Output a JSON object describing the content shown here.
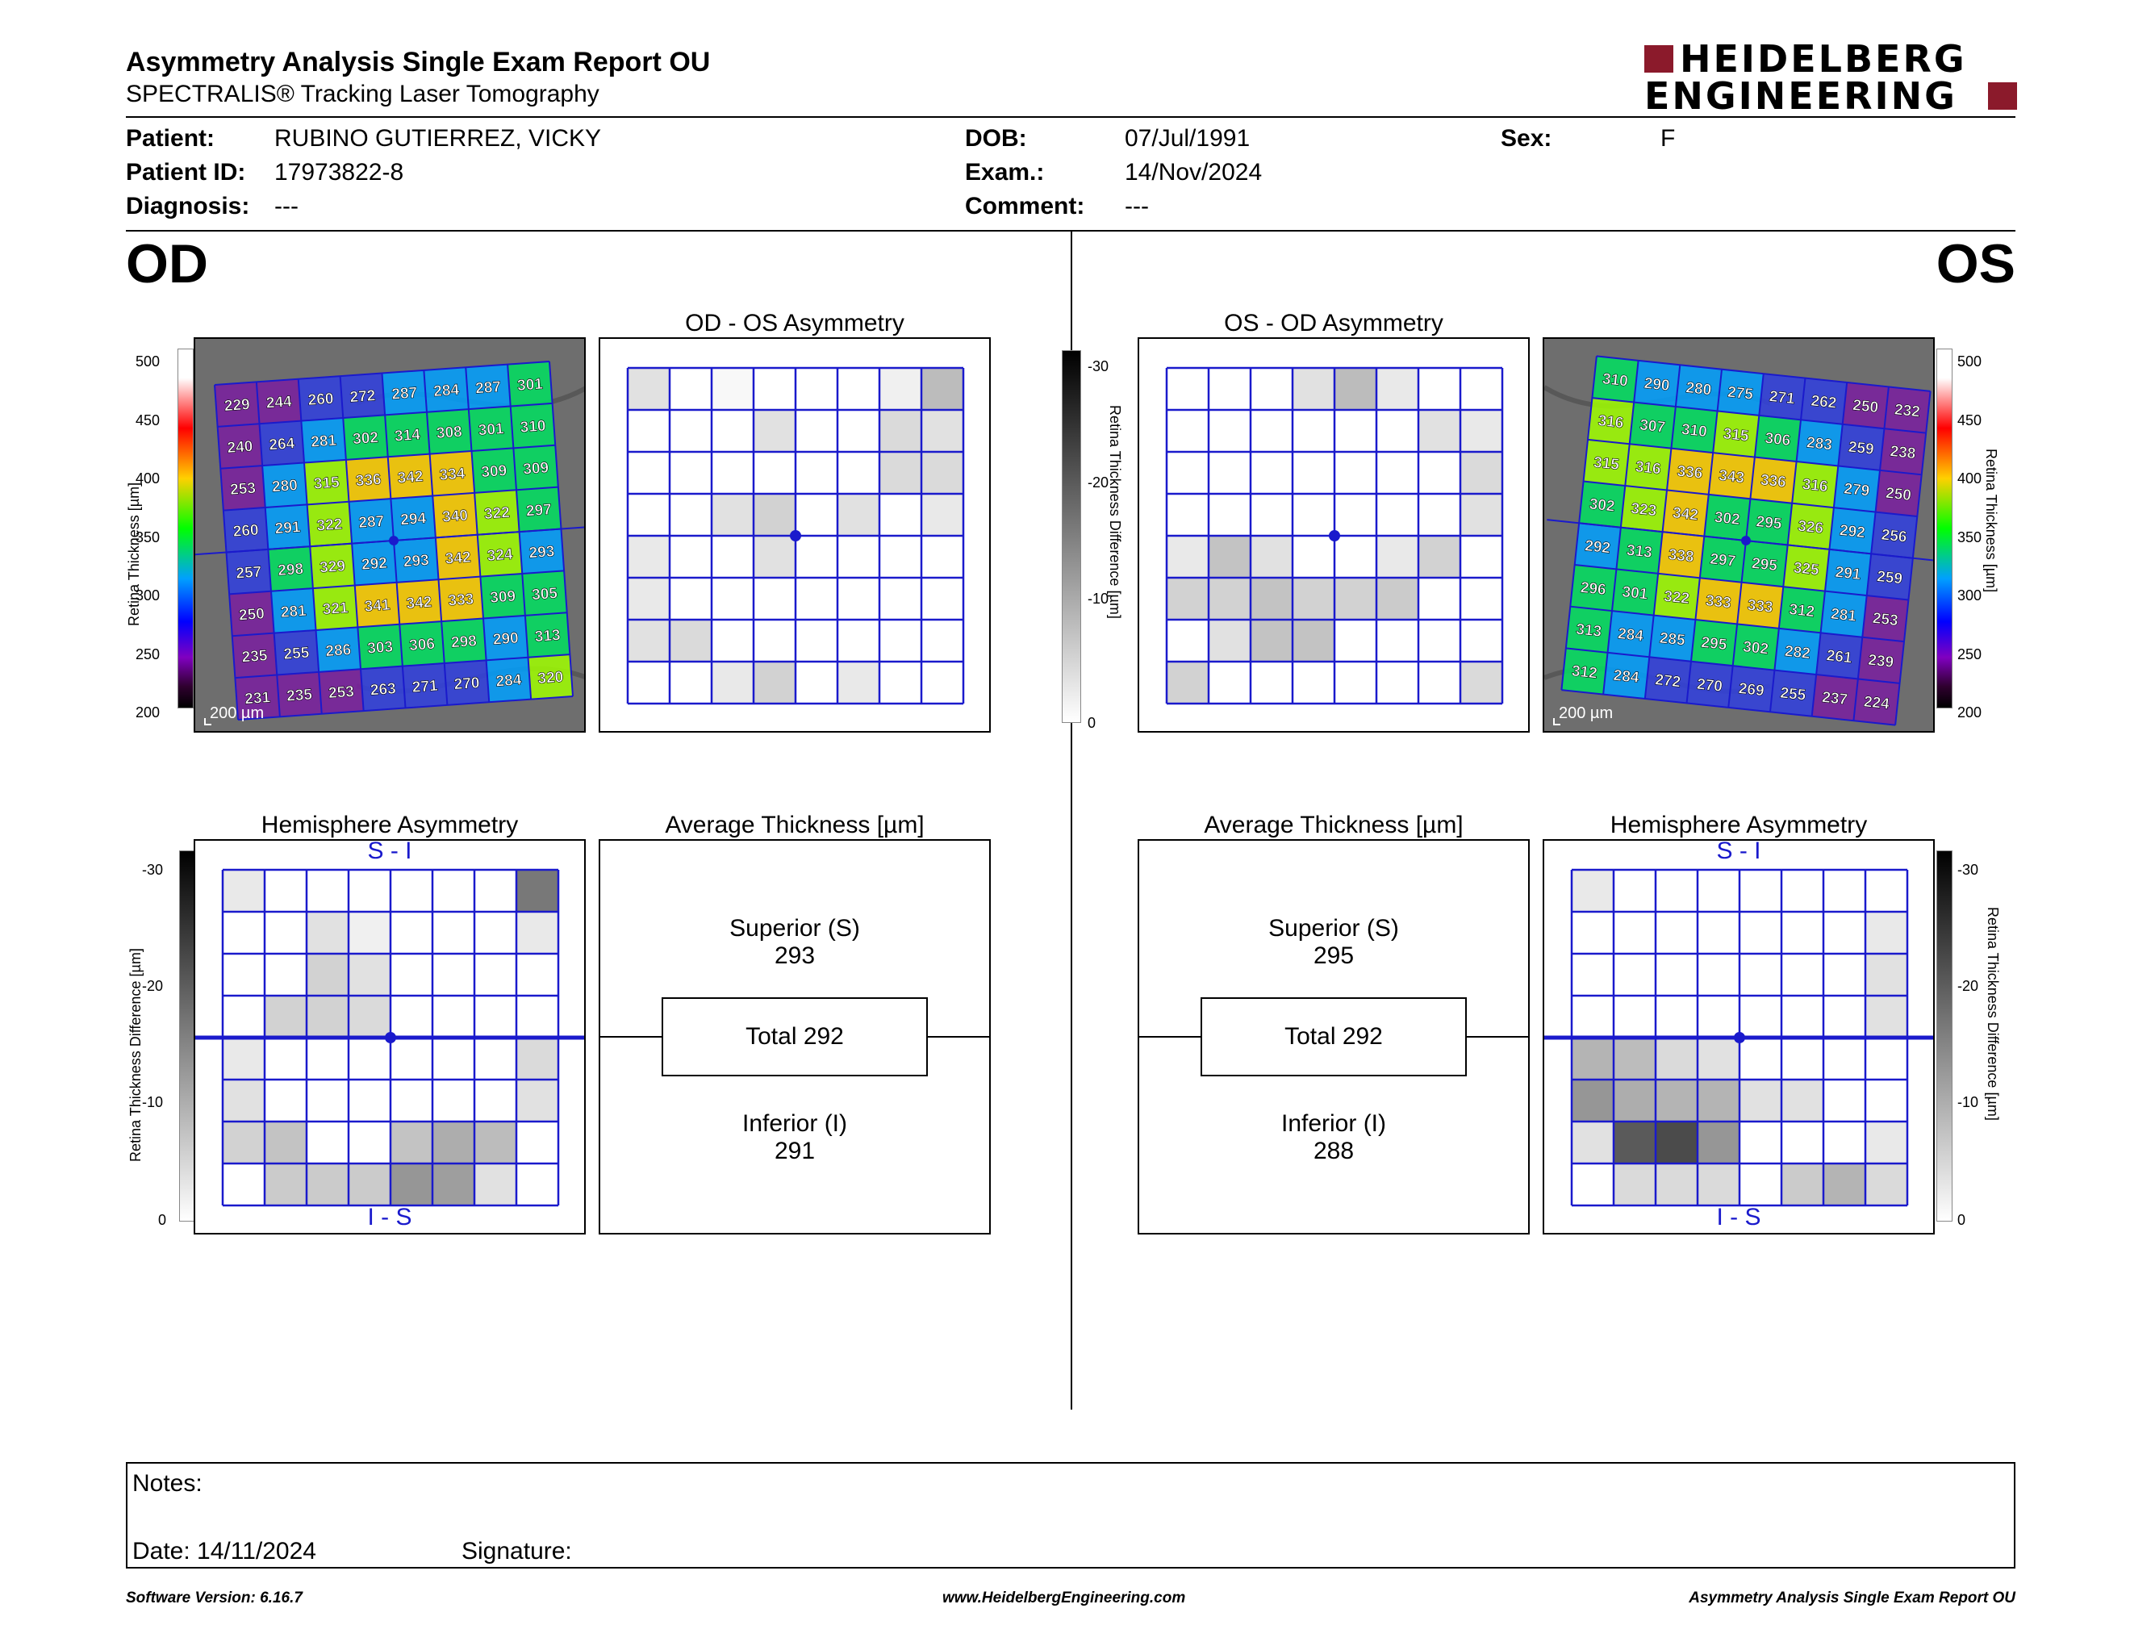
{
  "header": {
    "title": "Asymmetry Analysis Single Exam Report OU",
    "subtitle": "SPECTRALIS® Tracking Laser Tomography",
    "logo_line1": "HEIDELBERG",
    "logo_line2": "ENGINEERING",
    "brand_color": "#8b1a2b"
  },
  "patient": {
    "patient_label": "Patient:",
    "patient_value": "RUBINO GUTIERREZ, VICKY",
    "id_label": "Patient ID:",
    "id_value": "17973822-8",
    "diagnosis_label": "Diagnosis:",
    "diagnosis_value": "---",
    "dob_label": "DOB:",
    "dob_value": "07/Jul/1991",
    "exam_label": "Exam.:",
    "exam_value": "14/Nov/2024",
    "comment_label": "Comment:",
    "comment_value": "---",
    "sex_label": "Sex:",
    "sex_value": "F"
  },
  "od": {
    "eye_label": "OD",
    "asym_title": "OD - OS Asymmetry",
    "hemi_title": "Hemisphere Asymmetry",
    "avg_title": "Average Thickness [µm]",
    "hemi_top": "S - I",
    "hemi_bottom": "I - S",
    "scale_text": "200 µm",
    "superior_label": "Superior (S)",
    "superior_value": "293",
    "total_label": "Total 292",
    "inferior_label": "Inferior (I)",
    "inferior_value": "291",
    "thickness": [
      [
        229,
        244,
        260,
        272,
        287,
        284,
        287,
        301
      ],
      [
        240,
        264,
        281,
        302,
        314,
        308,
        301,
        310
      ],
      [
        253,
        280,
        315,
        336,
        342,
        334,
        309,
        309
      ],
      [
        260,
        291,
        322,
        287,
        294,
        340,
        322,
        297
      ],
      [
        257,
        298,
        329,
        292,
        293,
        342,
        324,
        293
      ],
      [
        250,
        281,
        321,
        341,
        342,
        333,
        309,
        305
      ],
      [
        235,
        255,
        286,
        303,
        306,
        298,
        290,
        313
      ],
      [
        231,
        235,
        253,
        263,
        271,
        270,
        284,
        320
      ]
    ],
    "asym_grid": [
      [
        4,
        0,
        1,
        0,
        0,
        0,
        2,
        9
      ],
      [
        0,
        0,
        0,
        4,
        0,
        0,
        5,
        4
      ],
      [
        0,
        0,
        0,
        0,
        0,
        0,
        5,
        5
      ],
      [
        0,
        0,
        4,
        6,
        0,
        4,
        0,
        3
      ],
      [
        3,
        0,
        0,
        4,
        0,
        0,
        0,
        0
      ],
      [
        3,
        0,
        0,
        0,
        0,
        0,
        0,
        0
      ],
      [
        4,
        5,
        0,
        0,
        0,
        0,
        0,
        0
      ],
      [
        0,
        0,
        3,
        6,
        0,
        3,
        0,
        0
      ]
    ],
    "hemi_grid": [
      [
        3,
        0,
        0,
        0,
        0,
        0,
        0,
        18
      ],
      [
        0,
        0,
        4,
        2,
        0,
        0,
        0,
        3
      ],
      [
        0,
        0,
        6,
        4,
        0,
        0,
        0,
        0
      ],
      [
        0,
        6,
        6,
        5,
        0,
        0,
        0,
        0
      ],
      [
        3,
        0,
        0,
        0,
        0,
        0,
        0,
        5
      ],
      [
        4,
        0,
        0,
        0,
        0,
        0,
        0,
        4
      ],
      [
        6,
        8,
        0,
        0,
        8,
        11,
        9,
        0
      ],
      [
        0,
        7,
        7,
        7,
        14,
        13,
        4,
        0
      ]
    ]
  },
  "os": {
    "eye_label": "OS",
    "asym_title": "OS - OD Asymmetry",
    "hemi_title": "Hemisphere Asymmetry",
    "avg_title": "Average Thickness [µm]",
    "hemi_top": "S - I",
    "hemi_bottom": "I - S",
    "scale_text": "200 µm",
    "superior_label": "Superior (S)",
    "superior_value": "295",
    "total_label": "Total 292",
    "inferior_label": "Inferior (I)",
    "inferior_value": "288",
    "thickness": [
      [
        310,
        290,
        280,
        275,
        271,
        262,
        250,
        232
      ],
      [
        316,
        307,
        310,
        315,
        306,
        283,
        259,
        238
      ],
      [
        315,
        316,
        336,
        343,
        336,
        316,
        279,
        250
      ],
      [
        302,
        323,
        342,
        302,
        295,
        326,
        292,
        256
      ],
      [
        292,
        313,
        338,
        297,
        295,
        325,
        291,
        259
      ],
      [
        296,
        301,
        322,
        333,
        333,
        312,
        281,
        253
      ],
      [
        313,
        284,
        285,
        295,
        302,
        282,
        261,
        239
      ],
      [
        312,
        284,
        272,
        270,
        269,
        255,
        237,
        224
      ]
    ],
    "asym_grid": [
      [
        0,
        0,
        0,
        4,
        9,
        3,
        0,
        0
      ],
      [
        0,
        0,
        0,
        0,
        0,
        0,
        4,
        3
      ],
      [
        0,
        0,
        0,
        0,
        0,
        0,
        0,
        5
      ],
      [
        0,
        0,
        0,
        0,
        0,
        0,
        0,
        4
      ],
      [
        3,
        8,
        4,
        0,
        0,
        3,
        6,
        0
      ],
      [
        6,
        6,
        8,
        6,
        6,
        7,
        0,
        0
      ],
      [
        0,
        4,
        8,
        8,
        0,
        0,
        0,
        0
      ],
      [
        6,
        0,
        0,
        0,
        0,
        0,
        0,
        5
      ]
    ],
    "hemi_grid": [
      [
        3,
        0,
        0,
        0,
        0,
        0,
        0,
        0
      ],
      [
        0,
        0,
        0,
        0,
        0,
        0,
        0,
        3
      ],
      [
        0,
        0,
        0,
        0,
        0,
        0,
        0,
        4
      ],
      [
        0,
        0,
        0,
        0,
        0,
        0,
        0,
        4
      ],
      [
        10,
        9,
        5,
        4,
        0,
        0,
        0,
        0
      ],
      [
        14,
        11,
        10,
        10,
        4,
        4,
        0,
        0
      ],
      [
        4,
        22,
        24,
        14,
        0,
        0,
        0,
        3
      ],
      [
        0,
        5,
        5,
        5,
        0,
        7,
        10,
        5
      ]
    ]
  },
  "scales": {
    "thickness_label": "Retina Thickness [µm]",
    "thickness_ticks": [
      "500",
      "450",
      "400",
      "350",
      "300",
      "250",
      "200"
    ],
    "diff_label": "Retina Thickness Difference [µm]",
    "diff_ticks": [
      "-30",
      "-20",
      "-10",
      "0"
    ]
  },
  "notes": {
    "notes_label": "Notes:",
    "date_text": "Date: 14/11/2024",
    "signature_label": "Signature:"
  },
  "footer": {
    "software": "Software Version: 6.16.7",
    "website": "www.HeidelbergEngineering.com",
    "report": "Asymmetry Analysis Single Exam Report OU"
  }
}
